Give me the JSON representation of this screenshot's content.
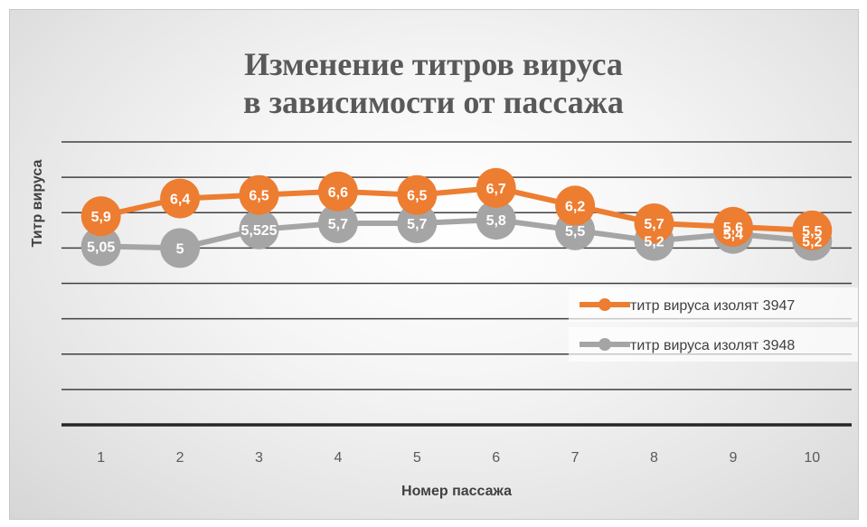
{
  "chart_data": {
    "type": "line",
    "title_lines": [
      "Изменение титров вируса",
      "в зависимости от пассажа"
    ],
    "xlabel": "Номер пассажа",
    "ylabel": "Титр вируса",
    "categories": [
      "1",
      "2",
      "3",
      "4",
      "5",
      "6",
      "7",
      "8",
      "9",
      "10"
    ],
    "ylim": [
      0,
      8
    ],
    "y_tick_step": 1,
    "y_tick_labels_shown": false,
    "grid": true,
    "legend_position": "right",
    "series": [
      {
        "name": "титр вируса изолят 3947",
        "color": "#ED7D31",
        "values": [
          5.9,
          6.4,
          6.5,
          6.6,
          6.5,
          6.7,
          6.2,
          5.7,
          5.6,
          5.5
        ],
        "labels": [
          "5,9",
          "6,4",
          "6,5",
          "6,6",
          "6,5",
          "6,7",
          "6,2",
          "5,7",
          "5,6",
          "5,5"
        ]
      },
      {
        "name": "титр вируса изолят 3948",
        "color": "#A5A5A5",
        "values": [
          5.05,
          5,
          5.525,
          5.7,
          5.7,
          5.8,
          5.5,
          5.2,
          5.4,
          5.2
        ],
        "labels": [
          "5,05",
          "5",
          "5,525",
          "5,7",
          "5,7",
          "5,8",
          "5,5",
          "5,2",
          "5,4",
          "5,2"
        ]
      }
    ]
  }
}
